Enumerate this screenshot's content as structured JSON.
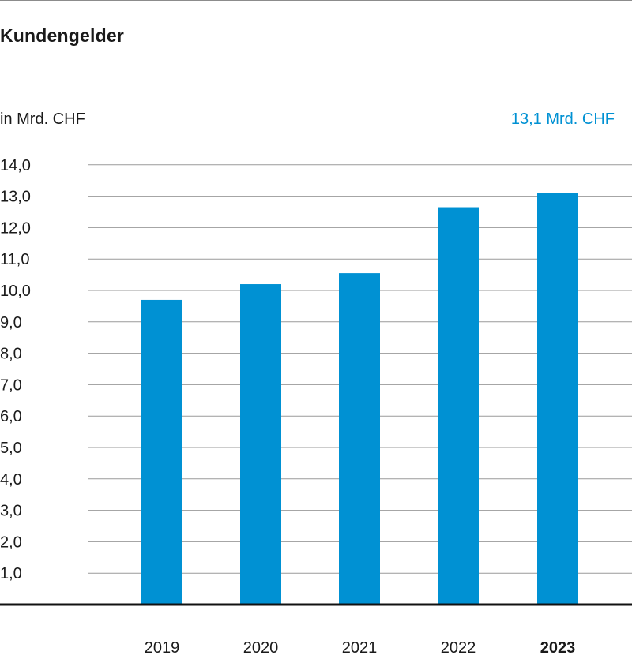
{
  "title": "Kundengelder",
  "unit_label": "in Mrd. CHF",
  "highlight_label": "13,1 Mrd. CHF",
  "colors": {
    "bar": "#0091d3",
    "highlight": "#0091d3",
    "grid": "#9a9a9a",
    "axis": "#111111",
    "text": "#1a1a1a"
  },
  "chart_data": {
    "type": "bar",
    "title": "Kundengelder",
    "ylabel": "in Mrd. CHF",
    "xlabel": "",
    "categories": [
      "2019",
      "2020",
      "2021",
      "2022",
      "2023"
    ],
    "values": [
      9.7,
      10.2,
      10.55,
      12.65,
      13.1
    ],
    "highlight_category": "2023",
    "ylim": [
      0,
      14
    ],
    "yticks": [
      "1,0",
      "2,0",
      "3,0",
      "4,0",
      "5,0",
      "6,0",
      "7,0",
      "8,0",
      "9,0",
      "10,0",
      "11,0",
      "12,0",
      "13,0",
      "14,0"
    ],
    "grid": true,
    "legend": "none"
  }
}
